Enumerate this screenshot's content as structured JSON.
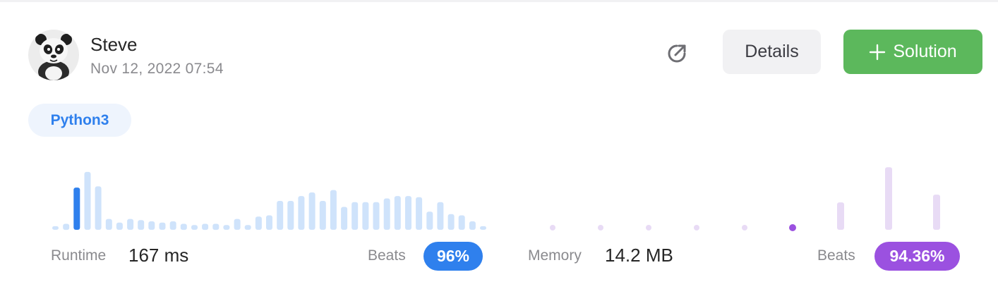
{
  "submission": {
    "username": "Steve",
    "date": "Nov 12, 2022 07:54",
    "language": "Python3"
  },
  "actions": {
    "share_icon": "share-external-icon",
    "details_label": "Details",
    "solution_label": "Solution",
    "solution_icon": "plus-icon"
  },
  "colors": {
    "runtime_bar": "#cfe3fb",
    "runtime_highlight": "#2f80ed",
    "memory_bar": "#e8dbf5",
    "memory_highlight": "#9b51e0",
    "solution_green": "#5cb85c"
  },
  "runtime": {
    "label": "Runtime",
    "value": "167 ms",
    "beats_label": "Beats",
    "beats_value": "96%"
  },
  "memory": {
    "label": "Memory",
    "value": "14.2 MB",
    "beats_label": "Beats",
    "beats_value": "94.36%"
  },
  "chart_data": [
    {
      "type": "bar",
      "name": "runtime-distribution",
      "values": [
        3,
        5,
        35,
        48,
        36,
        9,
        6,
        9,
        8,
        7,
        6,
        7,
        5,
        4,
        5,
        5,
        4,
        9,
        4,
        11,
        12,
        24,
        24,
        28,
        31,
        24,
        33,
        19,
        23,
        23,
        23,
        26,
        28,
        28,
        27,
        15,
        23,
        13,
        12,
        7,
        3
      ],
      "highlight_index": 2
    },
    {
      "type": "bar",
      "name": "memory-distribution",
      "values": [
        0.5,
        0.5,
        0.5,
        0.5,
        0.5,
        1,
        7,
        16,
        9
      ],
      "highlight_index": 5
    }
  ]
}
